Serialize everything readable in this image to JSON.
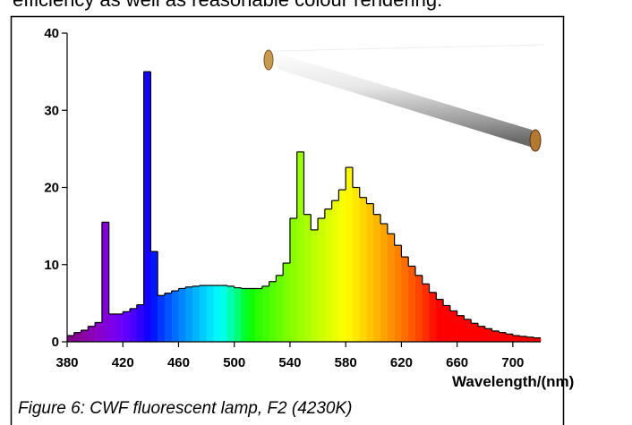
{
  "page_text": "efficiency as well as reasonable colour rendering.",
  "caption": "Figure 6: CWF fluorescent lamp, F2 (4230K)",
  "chart_data": {
    "type": "histogram",
    "x_label": "Wavelength/(nm)",
    "bins": [
      380,
      385,
      390,
      395,
      400,
      405,
      410,
      415,
      420,
      425,
      430,
      435,
      440,
      445,
      450,
      455,
      460,
      465,
      470,
      475,
      480,
      485,
      490,
      495,
      500,
      505,
      510,
      515,
      520,
      525,
      530,
      535,
      540,
      545,
      550,
      555,
      560,
      565,
      570,
      575,
      580,
      585,
      590,
      595,
      600,
      605,
      610,
      615,
      620,
      625,
      630,
      635,
      640,
      645,
      650,
      655,
      660,
      665,
      670,
      675,
      680,
      685,
      690,
      695,
      700,
      705,
      710,
      715,
      720
    ],
    "values": [
      0.8,
      1.2,
      1.5,
      2,
      2.5,
      15.5,
      3.6,
      3.6,
      3.9,
      4.3,
      4.8,
      35,
      11.7,
      6,
      6.3,
      6.6,
      6.9,
      7.1,
      7.2,
      7.3,
      7.3,
      7.3,
      7.3,
      7.2,
      7,
      6.9,
      6.9,
      6.9,
      7.2,
      7.8,
      8.6,
      10.2,
      16,
      24.6,
      16.5,
      14.5,
      16,
      17.2,
      18.3,
      19.7,
      22.6,
      20,
      18.7,
      17.9,
      16.5,
      15.3,
      14,
      12.5,
      11,
      9.8,
      8.6,
      7.5,
      6.4,
      5.5,
      4.7,
      4,
      3.4,
      2.9,
      2.4,
      2,
      1.7,
      1.4,
      1.2,
      1,
      0.8,
      0.7,
      0.6,
      0.5
    ],
    "xlim": [
      380,
      720
    ],
    "xticks": [
      380,
      420,
      460,
      500,
      540,
      580,
      620,
      660,
      700
    ],
    "ylim": [
      0,
      40
    ],
    "yticks": [
      0,
      10,
      20,
      30,
      40
    ],
    "color": "spectral"
  }
}
